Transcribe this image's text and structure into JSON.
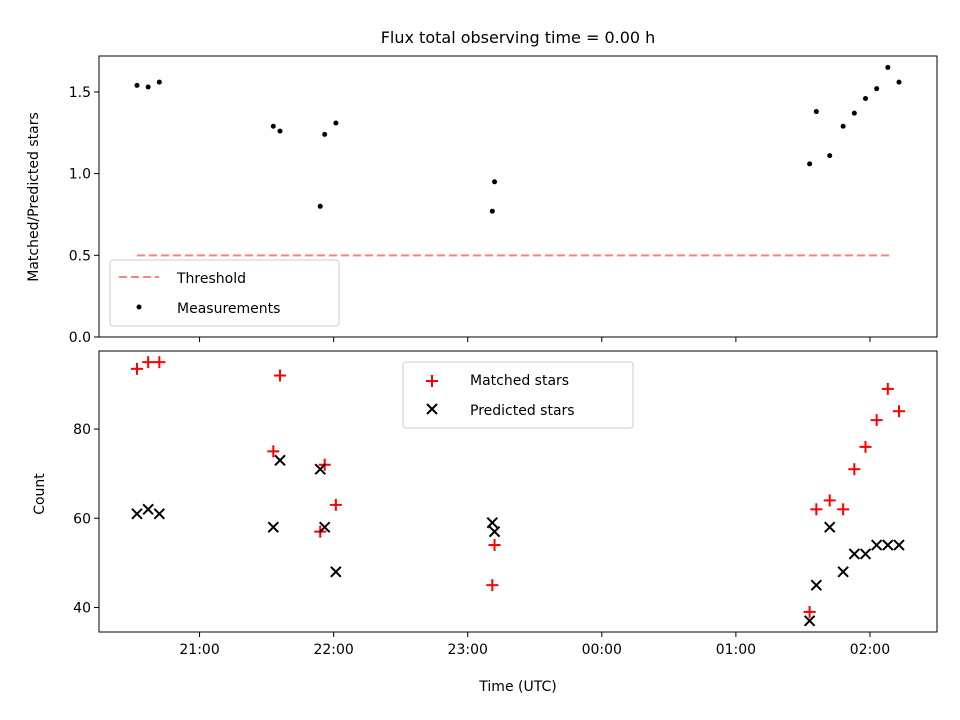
{
  "chart_data": [
    {
      "type": "scatter",
      "title": "Flux total observing time = 0.00 h",
      "xlabel": "",
      "ylabel": "Matched/Predicted stars",
      "ylim": [
        0.0,
        1.72
      ],
      "xlim": [
        "20:15",
        "02:30"
      ],
      "yticks": [
        0.0,
        0.5,
        1.0,
        1.5
      ],
      "ytick_labels": [
        "0.0",
        "0.5",
        "1.0",
        "1.5"
      ],
      "xtick_labels": [],
      "legend_position": "lower-left",
      "threshold": {
        "name": "Threshold",
        "value": 0.5,
        "x_start": "20:32",
        "x_end": "02:10",
        "color": "#ff7f7f",
        "style": "dashed"
      },
      "series": [
        {
          "name": "Measurements",
          "color": "#000000",
          "marker": "dot",
          "x": [
            "20:32",
            "20:37",
            "20:42",
            "21:33",
            "21:36",
            "21:54",
            "21:56",
            "22:01",
            "23:11",
            "23:12",
            "01:33",
            "01:36",
            "01:42",
            "01:48",
            "01:53",
            "01:58",
            "02:03",
            "02:08",
            "02:13"
          ],
          "y": [
            1.54,
            1.53,
            1.56,
            1.29,
            1.26,
            0.8,
            1.24,
            1.31,
            0.77,
            0.95,
            1.06,
            1.38,
            1.11,
            1.29,
            1.37,
            1.46,
            1.52,
            1.65,
            1.56
          ]
        }
      ]
    },
    {
      "type": "scatter",
      "title": "",
      "xlabel": "Time (UTC)",
      "ylabel": "Count",
      "ylim": [
        34.5,
        97.5
      ],
      "xlim": [
        "20:15",
        "02:30"
      ],
      "yticks": [
        40,
        60,
        80
      ],
      "ytick_labels": [
        "40",
        "60",
        "80"
      ],
      "xticks": [
        "21:00",
        "22:00",
        "23:00",
        "00:00",
        "01:00",
        "02:00"
      ],
      "xtick_labels": [
        "21:00",
        "22:00",
        "23:00",
        "00:00",
        "01:00",
        "02:00"
      ],
      "legend_position": "upper-center",
      "series": [
        {
          "name": "Matched stars",
          "color": "#ff0000",
          "marker": "plus",
          "x": [
            "20:32",
            "20:37",
            "20:42",
            "21:33",
            "21:36",
            "21:54",
            "21:56",
            "22:01",
            "23:11",
            "23:12",
            "01:33",
            "01:36",
            "01:42",
            "01:48",
            "01:53",
            "01:58",
            "02:03",
            "02:08",
            "02:13"
          ],
          "y": [
            93.5,
            95,
            95,
            75,
            92,
            57,
            72,
            63,
            45,
            54,
            39,
            62,
            64,
            62,
            71,
            76,
            82,
            89,
            84
          ]
        },
        {
          "name": "Predicted stars",
          "color": "#000000",
          "marker": "x",
          "x": [
            "20:32",
            "20:37",
            "20:42",
            "21:33",
            "21:36",
            "21:54",
            "21:56",
            "22:01",
            "23:11",
            "23:12",
            "01:33",
            "01:36",
            "01:42",
            "01:48",
            "01:53",
            "01:58",
            "02:03",
            "02:08",
            "02:13"
          ],
          "y": [
            61,
            62,
            61,
            58,
            73,
            71,
            58,
            48,
            59,
            57,
            37,
            45,
            58,
            48,
            52,
            52,
            54,
            54,
            54
          ]
        }
      ]
    }
  ]
}
